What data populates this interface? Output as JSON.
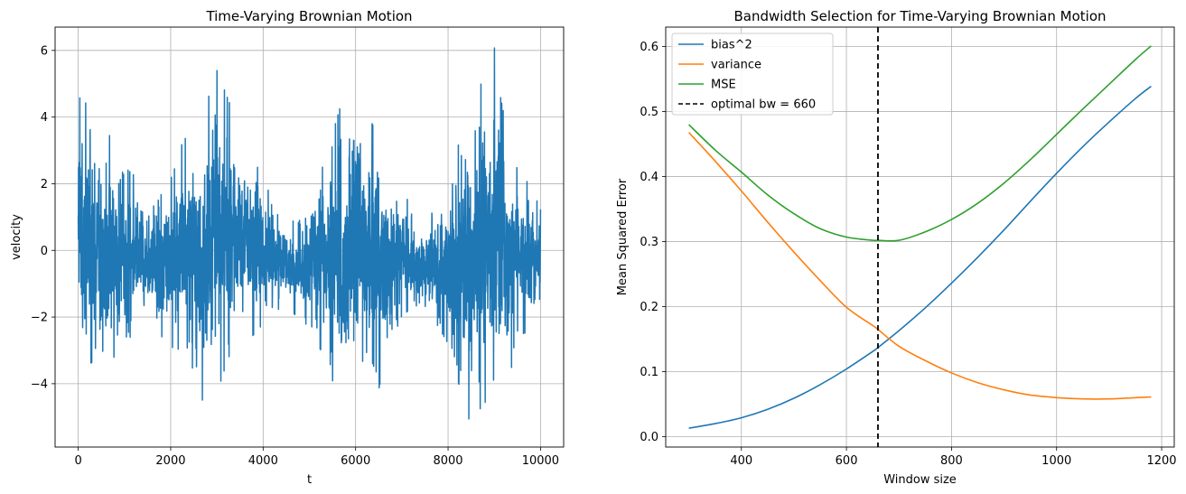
{
  "chart_data": [
    {
      "type": "line",
      "title": "Time-Varying Brownian Motion",
      "xlabel": "t",
      "ylabel": "velocity",
      "xlim": [
        -500,
        10500
      ],
      "ylim": [
        -5.9,
        6.7
      ],
      "xticks": [
        0,
        2000,
        4000,
        6000,
        8000,
        10000
      ],
      "xtick_labels": [
        "0",
        "2000",
        "4000",
        "6000",
        "8000",
        "10000"
      ],
      "yticks": [
        -4,
        -2,
        0,
        2,
        4,
        6
      ],
      "ytick_labels": [
        "−4",
        "−2",
        "0",
        "2",
        "4",
        "6"
      ],
      "grid": true,
      "series": [
        {
          "color": "#1f77b4",
          "points": 10000,
          "envelope": {
            "t": [
              0,
              250,
              500,
              750,
              1000,
              1250,
              1500,
              1750,
              2000,
              2250,
              2500,
              2750,
              3000,
              3250,
              3500,
              3750,
              4000,
              4250,
              4500,
              4750,
              5000,
              5250,
              5500,
              5750,
              6000,
              6250,
              6500,
              6750,
              7000,
              7250,
              7500,
              7750,
              8000,
              8250,
              8500,
              8750,
              9000,
              9250,
              9500,
              9750,
              10000
            ],
            "upper": [
              5.2,
              4.0,
              3.8,
              3.3,
              2.5,
              2.2,
              1.6,
              1.5,
              2.5,
              3.2,
              3.8,
              4.3,
              5.4,
              4.5,
              3.7,
              2.8,
              2.2,
              1.3,
              1.0,
              0.8,
              1.5,
              2.7,
              3.5,
              4.7,
              5.7,
              4.1,
              3.4,
              2.0,
              2.1,
              0.9,
              0.7,
              1.4,
              2.2,
              3.7,
              4.4,
              5.1,
              6.1,
              4.2,
              2.4,
              2.3,
              1.4
            ],
            "lower": [
              -4.2,
              -3.4,
              -3.2,
              -3.6,
              -3.0,
              -2.2,
              -2.3,
              -2.5,
              -2.9,
              -3.0,
              -3.6,
              -4.8,
              -4.3,
              -3.2,
              -3.0,
              -2.6,
              -2.2,
              -1.8,
              -1.7,
              -2.0,
              -2.3,
              -3.3,
              -3.9,
              -5.2,
              -4.3,
              -3.4,
              -4.2,
              -2.4,
              -2.2,
              -1.8,
              -1.8,
              -2.2,
              -2.8,
              -4.1,
              -5.3,
              -4.6,
              -4.4,
              -4.2,
              -2.8,
              -2.7,
              -2.0
            ]
          }
        }
      ]
    },
    {
      "type": "line",
      "title": "Bandwidth Selection for Time-Varying Brownian Motion",
      "xlabel": "Window size",
      "ylabel": "Mean Squared Error",
      "xlim": [
        256,
        1224
      ],
      "ylim": [
        -0.016,
        0.63
      ],
      "xticks": [
        400,
        600,
        800,
        1000,
        1200
      ],
      "xtick_labels": [
        "400",
        "600",
        "800",
        "1000",
        "1200"
      ],
      "yticks": [
        0.0,
        0.1,
        0.2,
        0.3,
        0.4,
        0.5,
        0.6
      ],
      "ytick_labels": [
        "0.0",
        "0.1",
        "0.2",
        "0.3",
        "0.4",
        "0.5",
        "0.6"
      ],
      "grid": true,
      "legend_loc": "upper-left",
      "x": [
        300,
        350,
        400,
        450,
        500,
        550,
        600,
        650,
        660,
        700,
        750,
        800,
        850,
        900,
        950,
        1000,
        1050,
        1100,
        1150,
        1180
      ],
      "series": [
        {
          "name": "bias^2",
          "color": "#1f77b4",
          "values": [
            0.013,
            0.02,
            0.029,
            0.042,
            0.059,
            0.08,
            0.104,
            0.131,
            0.137,
            0.163,
            0.198,
            0.236,
            0.276,
            0.318,
            0.362,
            0.405,
            0.446,
            0.484,
            0.52,
            0.539
          ]
        },
        {
          "name": "variance",
          "color": "#ff7f0e",
          "values": [
            0.468,
            0.424,
            0.378,
            0.33,
            0.284,
            0.24,
            0.199,
            0.171,
            0.165,
            0.139,
            0.117,
            0.098,
            0.083,
            0.072,
            0.064,
            0.06,
            0.058,
            0.058,
            0.06,
            0.061
          ]
        },
        {
          "name": "MSE",
          "color": "#2ca02c",
          "values": [
            0.48,
            0.441,
            0.407,
            0.372,
            0.343,
            0.32,
            0.307,
            0.302,
            0.302,
            0.302,
            0.315,
            0.334,
            0.359,
            0.39,
            0.426,
            0.465,
            0.504,
            0.542,
            0.58,
            0.601
          ]
        }
      ],
      "vline": {
        "name": "optimal bw = 660",
        "x": 660,
        "color": "#000000",
        "style": "dashed"
      }
    }
  ]
}
